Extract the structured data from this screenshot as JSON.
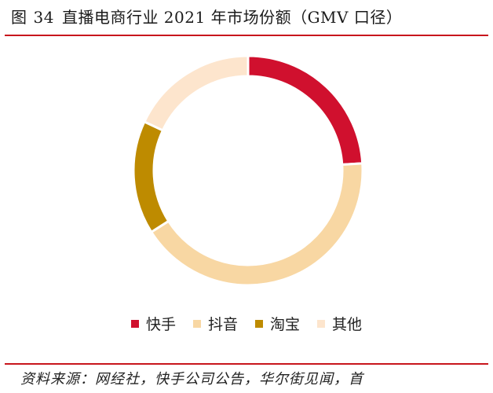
{
  "header": {
    "figure_label": "图",
    "figure_number": "34",
    "title": "直播电商行业 2021 年市场份额（GMV 口径）"
  },
  "source_note": "资料来源：网经社，快手公司公告，华尔街见闻，首",
  "chart_data": {
    "type": "pie",
    "donut": true,
    "title": "直播电商行业 2021 年市场份额（GMV 口径）",
    "legend_position": "bottom",
    "categories": [
      "快手",
      "抖音",
      "淘宝",
      "其他"
    ],
    "values": [
      0.24,
      0.42,
      0.16,
      0.18
    ],
    "colors": [
      "#d0102e",
      "#f8d7a3",
      "#be8b00",
      "#fde5cd"
    ]
  }
}
